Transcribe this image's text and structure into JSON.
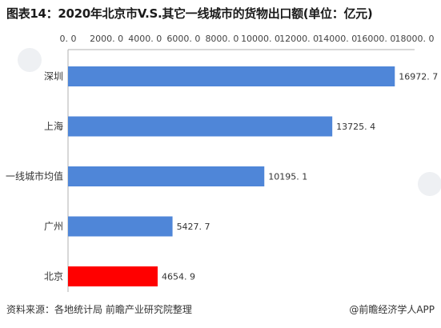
{
  "header": {
    "title": "图表14：2020年北京市V.S.其它一线城市的货物出口额(单位：亿元)"
  },
  "footer": {
    "source": "资料来源：各地统计局 前瞻产业研究院整理",
    "credit": "@前瞻经济学人APP"
  },
  "colors": {
    "bar_default": "#4f86d8",
    "bar_highlight": "#ff0000",
    "axis": "#b0b0b0"
  },
  "chart_data": {
    "type": "bar",
    "orientation": "horizontal",
    "categories": [
      "深圳",
      "上海",
      "一线城市均值",
      "广州",
      "北京"
    ],
    "values": [
      16972.7,
      13725.4,
      10195.1,
      5427.7,
      4654.9
    ],
    "value_labels": [
      "16972. 7",
      "13725. 4",
      "10195. 1",
      "5427. 7",
      "4654. 9"
    ],
    "highlight_category": "北京",
    "x_ticks": [
      0,
      2000,
      4000,
      6000,
      8000,
      10000,
      12000,
      14000,
      16000,
      18000
    ],
    "x_tick_labels": [
      "0. 0",
      "2000. 0",
      "4000. 0",
      "6000. 0",
      "8000. 0",
      "10000. 0",
      "12000. 0",
      "14000. 0",
      "16000. 0",
      "18000. 0"
    ],
    "xlim": [
      0,
      18000
    ],
    "x_axis_position": "top",
    "grid": false,
    "title": "图表14：2020年北京市V.S.其它一线城市的货物出口额(单位：亿元)",
    "xlabel": "",
    "ylabel": ""
  }
}
